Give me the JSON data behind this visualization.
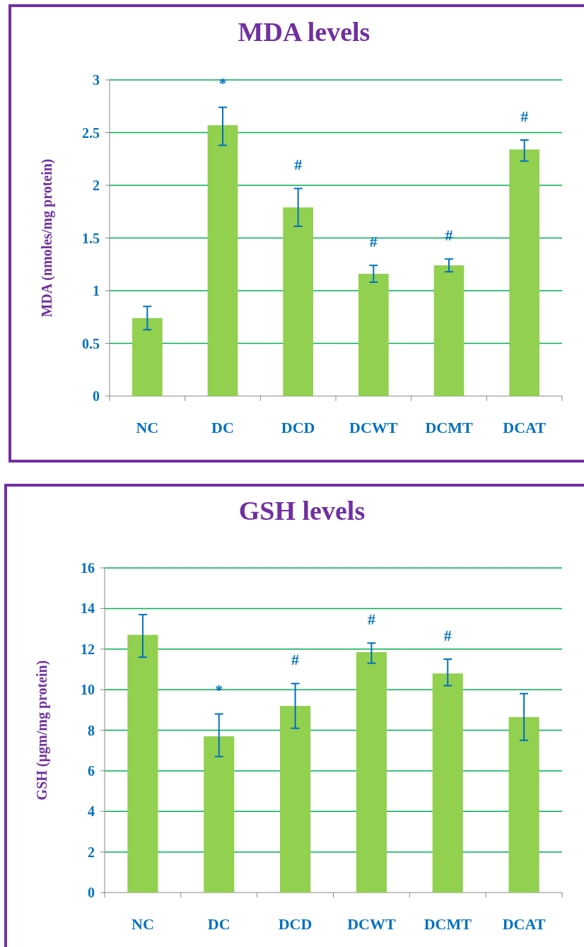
{
  "chart_data": [
    {
      "type": "bar",
      "title": "MDA levels",
      "ylabel": "MDA (nmoles/mg protein)",
      "categories": [
        "NC",
        "DC",
        "DCD",
        "DCWT",
        "DCMT",
        "DCAT"
      ],
      "values": [
        0.74,
        2.57,
        1.79,
        1.16,
        1.24,
        2.34
      ],
      "color": "#92d050",
      "errors": [
        [
          0.63,
          0.85
        ],
        [
          2.38,
          2.74
        ],
        [
          1.61,
          1.97
        ],
        [
          1.08,
          1.24
        ],
        [
          1.18,
          1.3
        ],
        [
          2.23,
          2.43
        ]
      ],
      "ylim": [
        0,
        3
      ],
      "yticks": [
        0,
        0.5,
        1,
        1.5,
        2,
        2.5,
        3
      ],
      "grid": "y",
      "value_labels": [
        null,
        "*",
        "#",
        "#",
        "#",
        "#"
      ]
    },
    {
      "type": "bar",
      "title": "GSH levels",
      "ylabel": "GSH (µgm/mg protein)",
      "categories": [
        "NC",
        "DC",
        "DCD",
        "DCWT",
        "DCMT",
        "DCAT"
      ],
      "values": [
        12.7,
        7.7,
        9.2,
        11.85,
        10.8,
        8.65
      ],
      "color": "#92d050",
      "errors": [
        [
          11.6,
          13.7
        ],
        [
          6.7,
          8.8
        ],
        [
          8.1,
          10.3
        ],
        [
          11.3,
          12.3
        ],
        [
          10.2,
          11.5
        ],
        [
          7.5,
          9.8
        ]
      ],
      "ylim": [
        0,
        16
      ],
      "yticks": [
        0,
        2,
        4,
        6,
        8,
        10,
        12,
        14,
        16
      ],
      "grid": "y",
      "value_labels": [
        null,
        "*",
        "#",
        "#",
        "#",
        null
      ]
    }
  ]
}
